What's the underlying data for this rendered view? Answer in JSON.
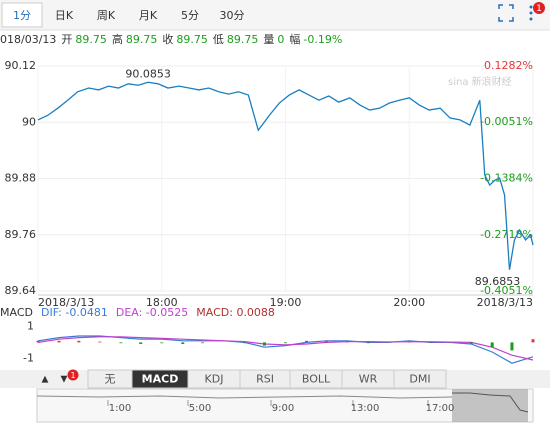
{
  "tabs": [
    "1分",
    "日K",
    "周K",
    "月K",
    "5分",
    "30分"
  ],
  "active_tab": 0,
  "badge": "1",
  "info": {
    "date": "018/03/13",
    "items": [
      {
        "label": "开",
        "value": "89.75"
      },
      {
        "label": "高",
        "value": "89.75"
      },
      {
        "label": "收",
        "value": "89.75"
      },
      {
        "label": "低",
        "value": "89.75"
      },
      {
        "label": "量",
        "value": "0"
      },
      {
        "label": "幅",
        "value": "-0.19%"
      }
    ]
  },
  "watermark": "sina 新浪财经",
  "chart_data": [
    {
      "type": "line",
      "color": "#1a7fc1",
      "up_color": "#e4393c",
      "down_color": "#1a9e1a",
      "x": [
        17.0,
        17.08,
        17.16,
        17.24,
        17.32,
        17.41,
        17.49,
        17.57,
        17.65,
        17.73,
        17.81,
        17.89,
        17.97,
        18.05,
        18.14,
        18.22,
        18.3,
        18.38,
        18.46,
        18.54,
        18.62,
        18.7,
        18.78,
        18.87,
        18.95,
        19.03,
        19.11,
        19.19,
        19.27,
        19.35,
        19.43,
        19.52,
        19.6,
        19.68,
        19.76,
        19.84,
        19.92,
        20.0,
        20.08,
        20.16,
        20.25,
        20.33,
        20.41,
        20.49,
        20.57,
        20.61,
        20.65,
        20.69,
        20.73,
        20.77,
        20.81,
        20.85,
        20.89,
        20.94,
        20.98,
        21.0
      ],
      "values": [
        90.005,
        90.015,
        90.03,
        90.047,
        90.065,
        90.073,
        90.069,
        90.077,
        90.073,
        90.082,
        90.079,
        90.0853,
        90.082,
        90.073,
        90.077,
        90.073,
        90.069,
        90.073,
        90.065,
        90.06,
        90.065,
        90.058,
        89.983,
        90.015,
        90.041,
        90.058,
        90.069,
        90.058,
        90.047,
        90.056,
        90.043,
        90.052,
        90.037,
        90.026,
        90.03,
        90.041,
        90.047,
        90.052,
        90.037,
        90.026,
        90.03,
        90.009,
        90.005,
        89.994,
        90.047,
        89.888,
        89.866,
        89.876,
        89.881,
        89.845,
        89.6853,
        89.749,
        89.77,
        89.749,
        89.76,
        89.738
      ],
      "xlim": [
        17,
        21
      ],
      "xticks": [
        {
          "value": 17,
          "label": "2018/3/13"
        },
        {
          "value": 18,
          "label": "18:00"
        },
        {
          "value": 19,
          "label": "19:00"
        },
        {
          "value": 20,
          "label": "20:00"
        },
        {
          "value": 21,
          "label": "2018/3/13"
        }
      ],
      "ylim": [
        89.64,
        90.12
      ],
      "yticks": [
        90.12,
        90,
        89.88,
        89.76,
        89.64
      ],
      "y2lim": [
        -0.4051,
        0.1282
      ],
      "y2ticks": [
        {
          "value": 0.1282,
          "label": "0.1282%"
        },
        {
          "value": -0.0051,
          "label": "-0.0051%"
        },
        {
          "value": -0.1384,
          "label": "-0.1384%"
        },
        {
          "value": -0.2718,
          "label": "-0.2718%"
        },
        {
          "value": -0.4051,
          "label": "-0.4051%"
        }
      ],
      "annotations": [
        90.0853,
        89.6853
      ],
      "grid": true
    },
    {
      "type": "macd",
      "title": "MACD",
      "x": [
        17.0,
        17.17,
        17.33,
        17.5,
        17.67,
        17.83,
        18.0,
        18.17,
        18.33,
        18.5,
        18.67,
        18.83,
        19.0,
        19.17,
        19.33,
        19.5,
        19.67,
        19.83,
        20.0,
        20.17,
        20.33,
        20.5,
        20.67,
        20.83,
        21.0
      ],
      "xlim": [
        17,
        21
      ],
      "ylim": [
        -1.6,
        1.4
      ],
      "yticks": [
        1,
        -1
      ],
      "up_color": "#e4393c",
      "down_color": "#1a9e1a",
      "series": [
        {
          "name": "DIF: -0.0481",
          "color": "#3a7bd5",
          "values": [
            0.1,
            0.3,
            0.4,
            0.4,
            0.3,
            0.2,
            0.2,
            0.1,
            0.1,
            0.1,
            0,
            -0.3,
            -0.2,
            0,
            0.1,
            0.1,
            0,
            0,
            0.1,
            0,
            0,
            -0.1,
            -0.6,
            -1.3,
            -0.9
          ]
        },
        {
          "name": "DEA: -0.0525",
          "color": "#c040d0",
          "values": [
            0,
            0.2,
            0.3,
            0.35,
            0.35,
            0.3,
            0.25,
            0.2,
            0.15,
            0.1,
            0.05,
            -0.1,
            -0.15,
            -0.1,
            0,
            0.05,
            0.05,
            0.03,
            0.05,
            0.04,
            0.02,
            0,
            -0.3,
            -0.8,
            -1.1
          ]
        },
        {
          "name": "MACD: 0.0088",
          "color": "#b03030",
          "bars": true,
          "values": [
            0.1,
            0.1,
            0.1,
            0.05,
            -0.05,
            -0.1,
            -0.05,
            -0.1,
            -0.05,
            0,
            -0.05,
            -0.2,
            -0.05,
            0.1,
            0.1,
            0.05,
            -0.05,
            -0.03,
            0.05,
            -0.04,
            -0.02,
            -0.1,
            -0.3,
            -0.5,
            0.2
          ]
        }
      ]
    }
  ],
  "arrows": [
    "▲",
    "▼"
  ],
  "indicator_tabs": [
    "无",
    "MACD",
    "KDJ",
    "RSI",
    "BOLL",
    "WR",
    "DMI"
  ],
  "active_indicator": 1,
  "navigator": [
    "1:00",
    "5:00",
    "9:00",
    "13:00",
    "17:00"
  ]
}
